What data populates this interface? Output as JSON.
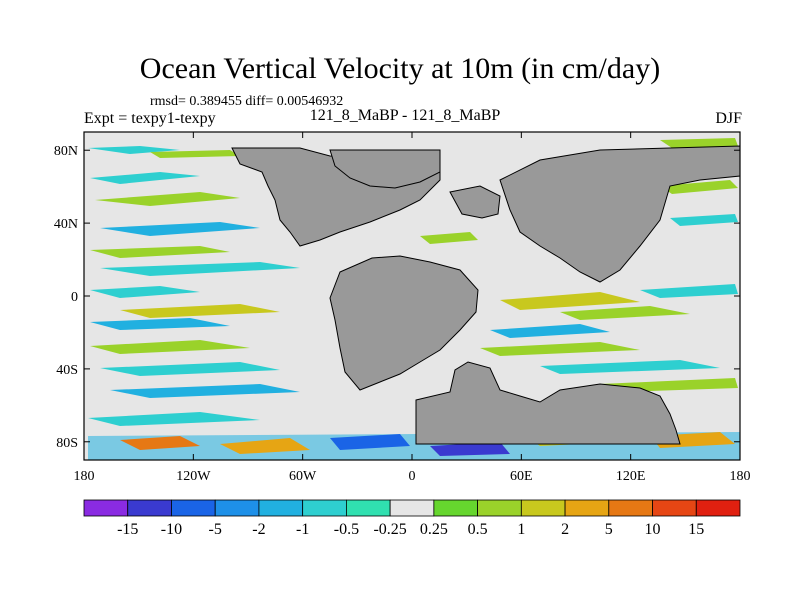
{
  "title": "Ocean Vertical Velocity at 10m (in cm/day)",
  "stats": "rmsd= 0.389455 diff= 0.00546932",
  "expt": "Expt = texpy1-texpy",
  "run_label": "121_8_MaBP - 121_8_MaBP",
  "season": "DJF",
  "map": {
    "lon_ticks": [
      "180",
      "120W",
      "60W",
      "0",
      "60E",
      "120E",
      "180"
    ],
    "lat_ticks": [
      "80N",
      "40N",
      "0",
      "40S",
      "80S"
    ],
    "land_color": "#999999",
    "background_color": "#e6e6e6"
  },
  "colorbar": {
    "labels": [
      "-15",
      "-10",
      "-5",
      "-2",
      "-1",
      "-0.5",
      "-0.25",
      "0.25",
      "0.5",
      "1",
      "2",
      "5",
      "10",
      "15"
    ],
    "colors": [
      "#8a2be2",
      "#3a3ad0",
      "#1a64e6",
      "#1e90e8",
      "#21b0e0",
      "#2ecfd0",
      "#30e0b0",
      "#e6e6e6",
      "#66d62e",
      "#9ad22a",
      "#c8c81e",
      "#e6a514",
      "#e67814",
      "#e64614",
      "#e02010"
    ]
  }
}
